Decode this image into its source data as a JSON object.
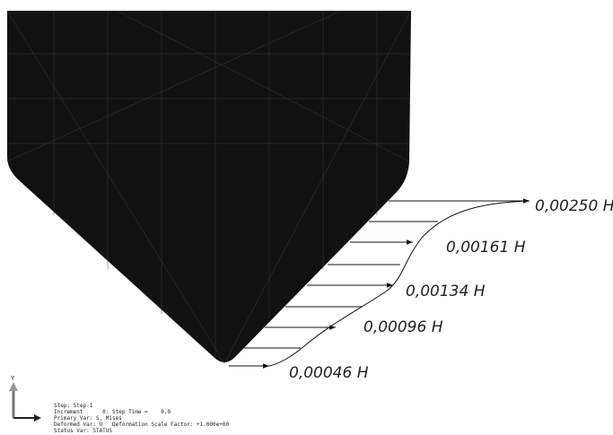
{
  "force_labels": [
    "0,00250 Н",
    "0,00161 Н",
    "0,00134 Н",
    "0,00096 Н",
    "0,00046 Н"
  ],
  "triad": {
    "axis": "Y"
  },
  "info_lines": [
    "Step: Step-1",
    "Increment      0: Step Time =    0.0",
    "Primary Var: S, Mises",
    "Deformed Var: U   Deformation Scale Factor: +1.000e+00",
    "Status Var: STATUS"
  ]
}
